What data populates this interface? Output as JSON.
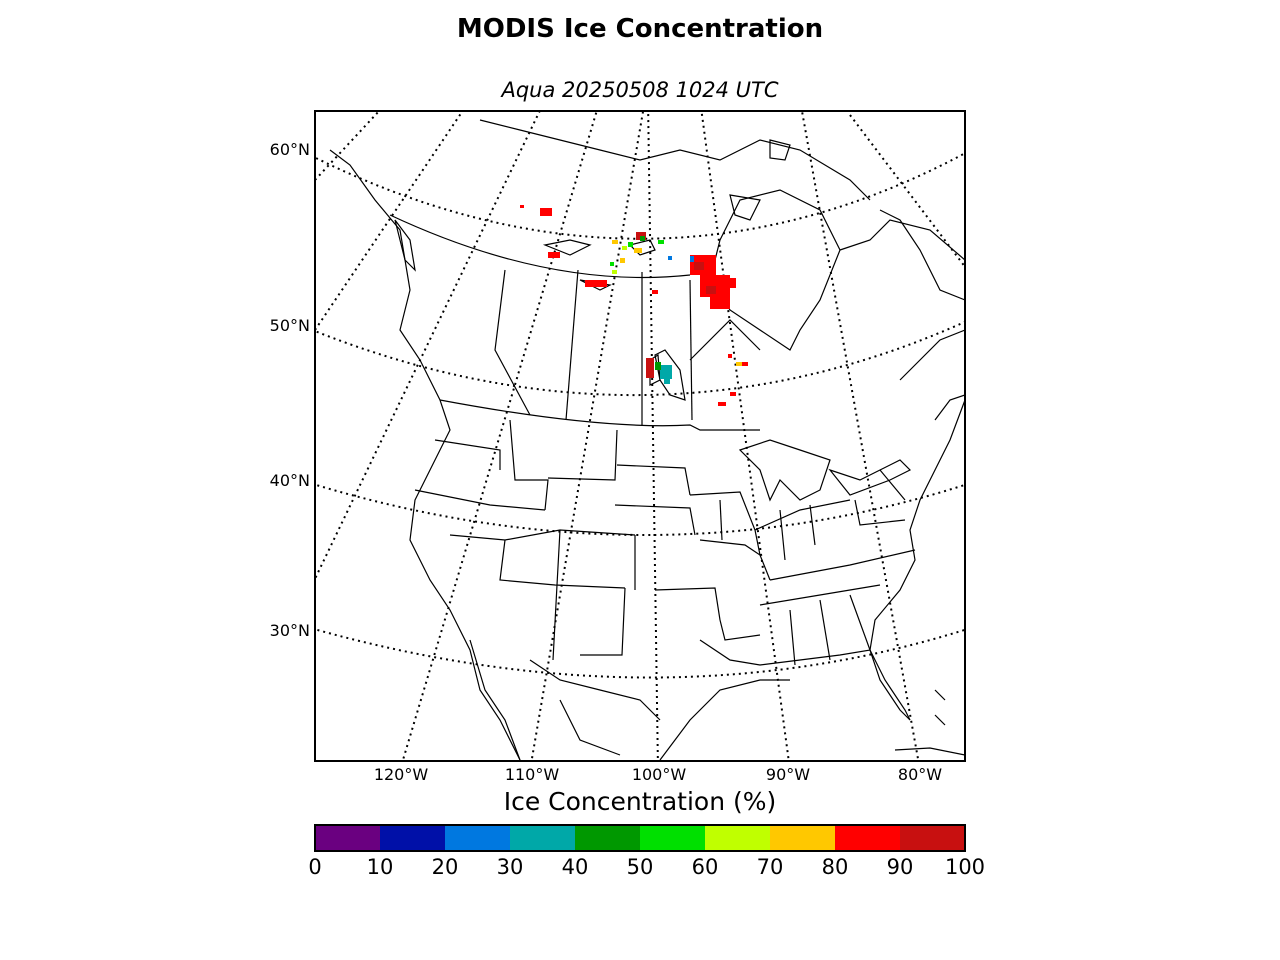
{
  "title": "MODIS Ice Concentration",
  "subtitle": "Aqua 20250508 1024 UTC",
  "lat_labels": [
    "60°N",
    "50°N",
    "40°N",
    "30°N"
  ],
  "lon_labels": [
    "120°W",
    "110°W",
    "100°W",
    "90°W",
    "80°W"
  ],
  "colorbar": {
    "title": "Ice Concentration (%)",
    "ticks": [
      "0",
      "10",
      "20",
      "30",
      "40",
      "50",
      "60",
      "70",
      "80",
      "90",
      "100"
    ],
    "colors": [
      "#6a0080",
      "#0010a8",
      "#0078e0",
      "#00a8a8",
      "#009800",
      "#00e000",
      "#c0ff00",
      "#ffc800",
      "#ff0000",
      "#c81010"
    ]
  },
  "map": {
    "projection": "Lambert conformal",
    "region": "North America",
    "graticule_style": "dotted"
  }
}
